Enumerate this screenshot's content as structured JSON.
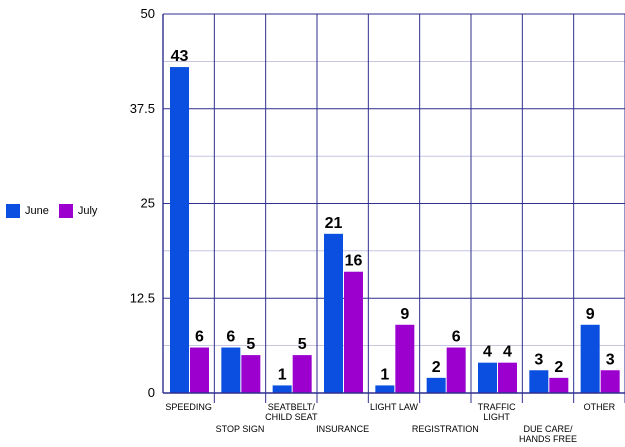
{
  "chart_data": {
    "type": "bar",
    "categories": [
      [
        "SPEEDING"
      ],
      [
        "STOP SIGN"
      ],
      [
        "SEATBELT/",
        "CHILD SEAT"
      ],
      [
        "INSURANCE"
      ],
      [
        "LIGHT LAW"
      ],
      [
        "REGISTRATION"
      ],
      [
        "TRAFFIC",
        "LIGHT"
      ],
      [
        "DUE CARE/",
        "HANDS FREE"
      ],
      [
        "OTHER"
      ]
    ],
    "series": [
      {
        "name": "June",
        "values": [
          43,
          6,
          1,
          21,
          1,
          2,
          4,
          3,
          9
        ],
        "color": "#0a4fe0"
      },
      {
        "name": "July",
        "values": [
          6,
          5,
          5,
          16,
          9,
          6,
          4,
          2,
          3
        ],
        "color": "#9b00cf"
      }
    ],
    "ylim": [
      0,
      50
    ],
    "yticks": [
      "0",
      "12.5",
      "25",
      "37.5",
      "50"
    ],
    "grid": true,
    "legend_position": "left",
    "title": "",
    "xlabel": "",
    "ylabel": ""
  },
  "legend": {
    "items": [
      {
        "label": "June",
        "color": "#0a4fe0"
      },
      {
        "label": "July",
        "color": "#9b00cf"
      }
    ]
  }
}
